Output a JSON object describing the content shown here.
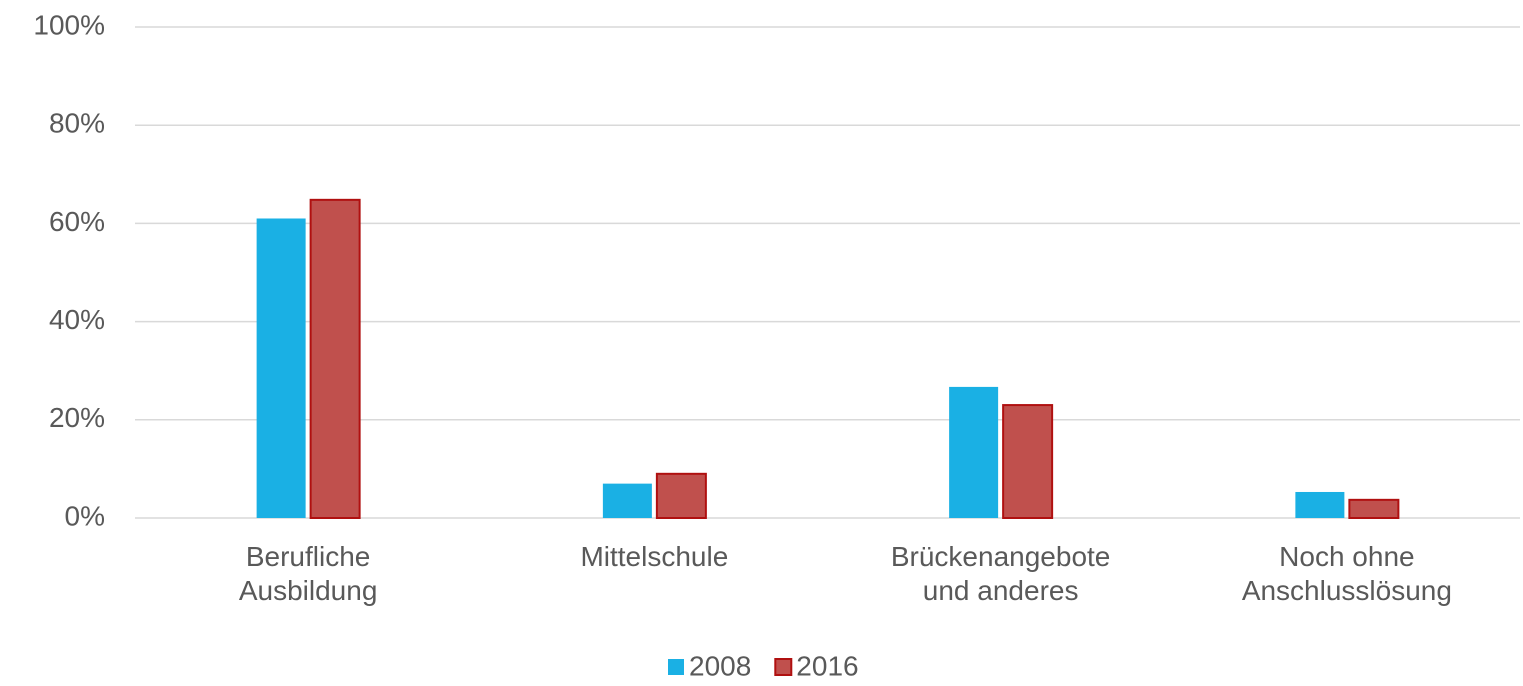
{
  "chart_data": {
    "type": "bar",
    "categories": [
      "Berufliche\nAusbildung",
      "Mittelschule",
      "Brückenangebote\nund anderes",
      "Noch ohne\nAnschlusslösung"
    ],
    "series": [
      {
        "name": "2008",
        "color": "#1ab0e4",
        "values": [
          61,
          7,
          26.7,
          5.3
        ]
      },
      {
        "name": "2016",
        "color": "#c0504d",
        "edgecolor": "#b01010",
        "values": [
          64.8,
          9,
          23,
          3.7
        ]
      }
    ],
    "ylim": [
      0,
      100
    ],
    "yticks": [
      {
        "value": 0,
        "label": "0%"
      },
      {
        "value": 20,
        "label": "20%"
      },
      {
        "value": 40,
        "label": "40%"
      },
      {
        "value": 60,
        "label": "60%"
      },
      {
        "value": 80,
        "label": "80%"
      },
      {
        "value": 100,
        "label": "100%"
      }
    ],
    "grid": true,
    "legend": "bottom"
  }
}
